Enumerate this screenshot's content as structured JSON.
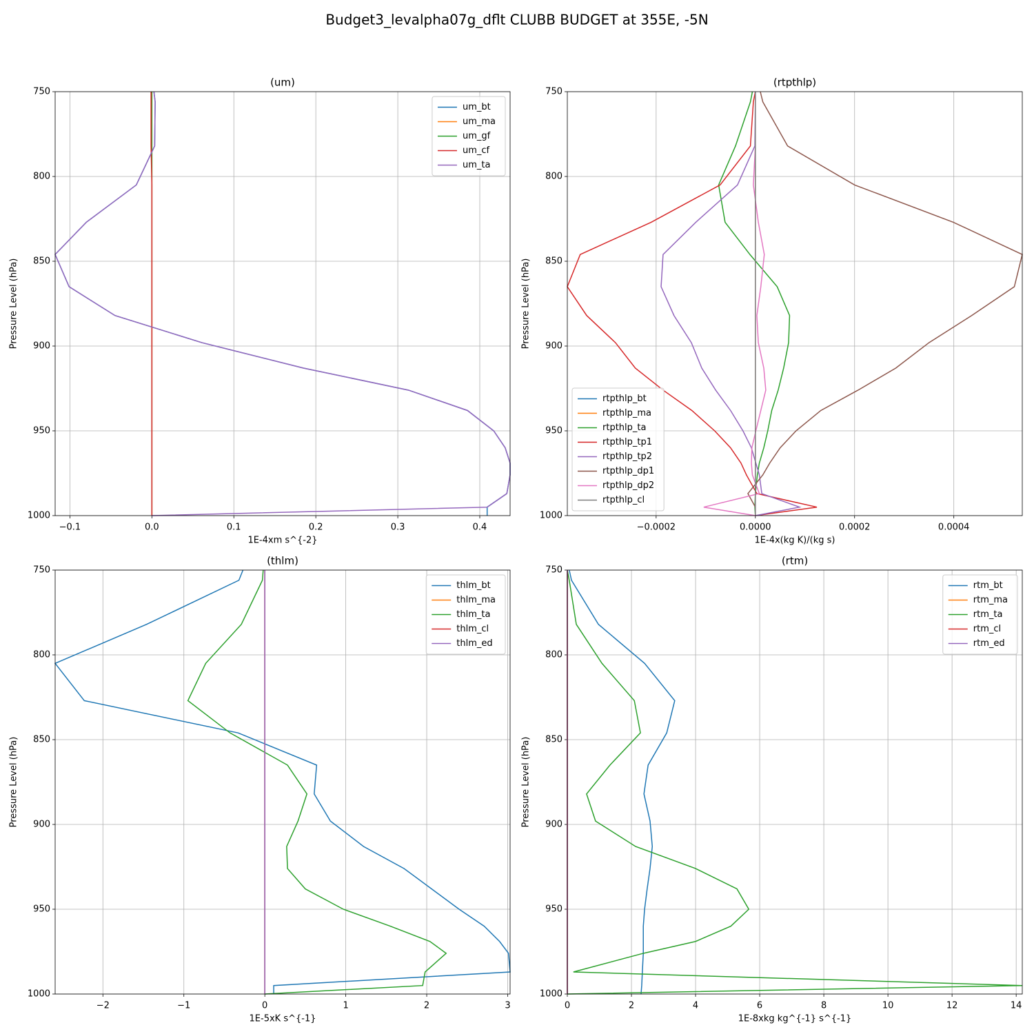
{
  "title": "Budget3_levalpha07g_dflt CLUBB BUDGET at 355E, -5N",
  "chart_data": [
    {
      "type": "line",
      "title": "(um)",
      "xlabel": "1E-4xm s^{-2}",
      "ylabel": "Pressure Level (hPa)",
      "y": [
        750,
        756,
        782,
        805,
        827,
        846,
        865,
        882,
        898,
        913,
        926,
        938,
        950,
        960,
        969,
        976,
        987,
        995,
        1000
      ],
      "xlim": [
        -0.118,
        0.437
      ],
      "ylim": [
        1000,
        750
      ],
      "xticks": [
        {
          "value": -0.1,
          "label": "−0.1"
        },
        {
          "value": 0,
          "label": "0.0"
        },
        {
          "value": 0.1,
          "label": "0.1"
        },
        {
          "value": 0.2,
          "label": "0.2"
        },
        {
          "value": 0.3,
          "label": "0.3"
        },
        {
          "value": 0.4,
          "label": "0.4"
        }
      ],
      "yticks": [
        750,
        800,
        850,
        900,
        950,
        1000
      ],
      "grid": true,
      "legend": "upper right",
      "series": [
        {
          "name": "um_bt",
          "color": "#1f77b4",
          "values": [
            0.0025,
            0.004,
            0.0034,
            -0.019,
            -0.08,
            -0.118,
            -0.101,
            -0.045,
            0.061,
            0.185,
            0.313,
            0.385,
            0.417,
            0.431,
            0.437,
            0.437,
            0.433,
            0.409,
            0.409
          ]
        },
        {
          "name": "um_ma",
          "color": "#ff7f0e",
          "values": [
            0,
            0,
            0,
            0,
            0,
            0,
            0,
            0,
            0,
            0,
            0,
            0,
            0,
            0,
            0,
            0,
            0,
            0,
            0
          ]
        },
        {
          "name": "um_gf",
          "color": "#2ca02c",
          "values": [
            0,
            0,
            0,
            0,
            0,
            0,
            0,
            0,
            0,
            0,
            0,
            0,
            0,
            0,
            0,
            0,
            0,
            0,
            0
          ]
        },
        {
          "name": "um_cf",
          "color": "#d62728",
          "values": [
            -0.001,
            -0.001,
            -0.001,
            0,
            0,
            0,
            0,
            0,
            0,
            0,
            0,
            0,
            0,
            0,
            0,
            0,
            0,
            0,
            0
          ]
        },
        {
          "name": "um_ta",
          "color": "#9467bd",
          "values": [
            0.0025,
            0.004,
            0.0034,
            -0.019,
            -0.08,
            -0.118,
            -0.101,
            -0.045,
            0.061,
            0.185,
            0.313,
            0.385,
            0.417,
            0.431,
            0.437,
            0.437,
            0.433,
            0.409,
            0
          ]
        }
      ]
    },
    {
      "type": "line",
      "title": "(rtpthlp)",
      "xlabel": "1E-4x(kg K)/(kg s)",
      "ylabel": "Pressure Level (hPa)",
      "y": [
        750,
        756,
        782,
        805,
        827,
        846,
        865,
        882,
        898,
        913,
        926,
        938,
        950,
        960,
        969,
        976,
        987,
        995,
        1000
      ],
      "xlim": [
        -0.000379,
        0.000538
      ],
      "ylim": [
        1000,
        750
      ],
      "xticks": [
        {
          "value": -0.0002,
          "label": "−0.0002"
        },
        {
          "value": 0,
          "label": "0.0000"
        },
        {
          "value": 0.0002,
          "label": "0.0002"
        },
        {
          "value": 0.0004,
          "label": "0.0004"
        }
      ],
      "yticks": [
        750,
        800,
        850,
        900,
        950,
        1000
      ],
      "grid": true,
      "legend": "lower left",
      "series": [
        {
          "name": "rtpthlp_bt",
          "color": "#1f77b4",
          "values": [
            0,
            0,
            0,
            0,
            0,
            0,
            0,
            0,
            0,
            0,
            0,
            0,
            0,
            0,
            0,
            0,
            0,
            0,
            0
          ]
        },
        {
          "name": "rtpthlp_ma",
          "color": "#ff7f0e",
          "values": [
            0,
            0,
            0,
            0,
            0,
            0,
            0,
            0,
            0,
            0,
            0,
            0,
            0,
            0,
            0,
            0,
            0,
            0,
            0
          ]
        },
        {
          "name": "rtpthlp_ta",
          "color": "#2ca02c",
          "values": [
            -6e-06,
            -1e-05,
            -4e-05,
            -7.4e-05,
            -6.1e-05,
            -1.1e-05,
            4.4e-05,
            6.9e-05,
            6.7e-05,
            5.7e-05,
            4.6e-05,
            3.3e-05,
            2.5e-05,
            1.7e-05,
            8e-06,
            4e-06,
            0,
            -1e-06,
            0
          ]
        },
        {
          "name": "rtpthlp_tp1",
          "color": "#d62728",
          "values": [
            0,
            -4e-06,
            -1e-05,
            -7.1e-05,
            -0.00021,
            -0.000353,
            -0.000379,
            -0.00034,
            -0.000282,
            -0.000242,
            -0.000186,
            -0.000128,
            -8.2e-05,
            -5e-05,
            -2.9e-05,
            -1.8e-05,
            3e-06,
            0.000124,
            0
          ]
        },
        {
          "name": "rtpthlp_tp2",
          "color": "#9467bd",
          "values": [
            0,
            0,
            -1e-06,
            -3.6e-05,
            -0.00012,
            -0.000186,
            -0.00019,
            -0.000164,
            -0.000129,
            -0.000108,
            -8e-05,
            -5e-05,
            -2.5e-05,
            -8e-06,
            1e-06,
            8e-06,
            1.3e-05,
            8.9e-05,
            0
          ]
        },
        {
          "name": "rtpthlp_dp1",
          "color": "#8c564b",
          "values": [
            1e-05,
            1.5e-05,
            6.5e-05,
            0.0002,
            0.000399,
            0.000538,
            0.000522,
            0.000436,
            0.00035,
            0.000283,
            0.000207,
            0.000132,
            8.2e-05,
            5e-05,
            2.9e-05,
            1.5e-05,
            -1.5e-05,
            0,
            0
          ]
        },
        {
          "name": "rtpthlp_dp2",
          "color": "#e377c2",
          "values": [
            0,
            0,
            0,
            -4e-06,
            6e-06,
            1.8e-05,
            1.1e-05,
            3e-06,
            6e-06,
            1.7e-05,
            2.1e-05,
            1.1e-05,
            1e-06,
            -7e-06,
            -8e-06,
            -6e-06,
            8e-06,
            -0.000104,
            0
          ]
        },
        {
          "name": "rtpthlp_cl",
          "color": "#7f7f7f",
          "values": [
            0,
            0,
            0,
            0,
            0,
            0,
            0,
            0,
            0,
            0,
            0,
            0,
            0,
            0,
            0,
            0,
            0,
            0,
            0
          ]
        }
      ]
    },
    {
      "type": "line",
      "title": "(thlm)",
      "xlabel": "1E-5xK s^{-1}",
      "ylabel": "Pressure Level (hPa)",
      "y": [
        750,
        756,
        782,
        805,
        827,
        846,
        865,
        882,
        898,
        913,
        926,
        938,
        950,
        960,
        969,
        976,
        987,
        995,
        1000
      ],
      "xlim": [
        -2.59,
        3.03
      ],
      "ylim": [
        1000,
        750
      ],
      "xticks": [
        {
          "value": -2,
          "label": "−2"
        },
        {
          "value": -1,
          "label": "−1"
        },
        0,
        1,
        2,
        3
      ],
      "yticks": [
        750,
        800,
        850,
        900,
        950,
        1000
      ],
      "grid": true,
      "legend": "upper right",
      "series": [
        {
          "name": "thlm_bt",
          "color": "#1f77b4",
          "values": [
            -0.27,
            -0.32,
            -1.46,
            -2.59,
            -2.23,
            -0.33,
            0.64,
            0.61,
            0.81,
            1.22,
            1.72,
            2.06,
            2.4,
            2.71,
            2.9,
            3.01,
            3.03,
            0.11,
            0.11
          ]
        },
        {
          "name": "thlm_ma",
          "color": "#ff7f0e",
          "values": [
            0,
            0,
            0,
            0,
            0,
            0,
            0,
            0,
            0,
            0,
            0,
            0,
            0,
            0,
            0,
            0,
            0,
            0,
            0
          ]
        },
        {
          "name": "thlm_ta",
          "color": "#2ca02c",
          "values": [
            -0.02,
            -0.03,
            -0.29,
            -0.73,
            -0.95,
            -0.43,
            0.28,
            0.52,
            0.41,
            0.27,
            0.28,
            0.5,
            0.97,
            1.55,
            2.04,
            2.24,
            1.98,
            1.95,
            0
          ]
        },
        {
          "name": "thlm_cl",
          "color": "#d62728",
          "values": [
            0,
            0,
            0,
            0,
            0,
            0,
            0,
            0,
            0,
            0,
            0,
            0,
            0,
            0,
            0,
            0,
            0,
            0,
            0
          ]
        },
        {
          "name": "thlm_ed",
          "color": "#9467bd",
          "values": [
            0,
            0,
            0,
            0,
            0,
            0,
            0,
            0,
            0,
            0,
            0,
            0,
            0,
            0,
            0,
            0,
            0,
            0,
            0
          ]
        }
      ]
    },
    {
      "type": "line",
      "title": "(rtm)",
      "xlabel": "1E-8xkg kg^{-1} s^{-1}",
      "ylabel": "Pressure Level (hPa)",
      "y": [
        750,
        756,
        782,
        805,
        827,
        846,
        865,
        882,
        898,
        913,
        926,
        938,
        950,
        960,
        969,
        976,
        987,
        995,
        1000
      ],
      "xlim": [
        0,
        14.19
      ],
      "ylim": [
        1000,
        750
      ],
      "xticks": [
        0,
        2,
        4,
        6,
        8,
        10,
        12,
        14
      ],
      "yticks": [
        750,
        800,
        850,
        900,
        950,
        1000
      ],
      "grid": true,
      "legend": "upper right",
      "series": [
        {
          "name": "rtm_bt",
          "color": "#1f77b4",
          "values": [
            0.06,
            0.13,
            0.97,
            2.41,
            3.35,
            3.1,
            2.52,
            2.39,
            2.58,
            2.65,
            2.58,
            2.49,
            2.41,
            2.37,
            2.37,
            2.37,
            2.34,
            2.32,
            2.3
          ]
        },
        {
          "name": "rtm_ma",
          "color": "#ff7f0e",
          "values": [
            0,
            0,
            0,
            0,
            0,
            0,
            0,
            0,
            0,
            0,
            0,
            0,
            0,
            0,
            0,
            0,
            0,
            0,
            0
          ]
        },
        {
          "name": "rtm_ta",
          "color": "#2ca02c",
          "values": [
            0,
            0.06,
            0.28,
            1.08,
            2.09,
            2.28,
            1.33,
            0.6,
            0.88,
            2.13,
            4.0,
            5.29,
            5.66,
            5.1,
            4.0,
            2.37,
            0.19,
            14.19,
            0
          ]
        },
        {
          "name": "rtm_cl",
          "color": "#d62728",
          "values": [
            0,
            0,
            0,
            0,
            0,
            0,
            0,
            0,
            0,
            0,
            0,
            0,
            0,
            0,
            0,
            0,
            0,
            0,
            0
          ]
        },
        {
          "name": "rtm_ed",
          "color": "#9467bd",
          "values": [
            0,
            0,
            0,
            0,
            0,
            0,
            0,
            0,
            0,
            0,
            0,
            0,
            0,
            0,
            0,
            0,
            0,
            0,
            0
          ]
        }
      ]
    }
  ]
}
